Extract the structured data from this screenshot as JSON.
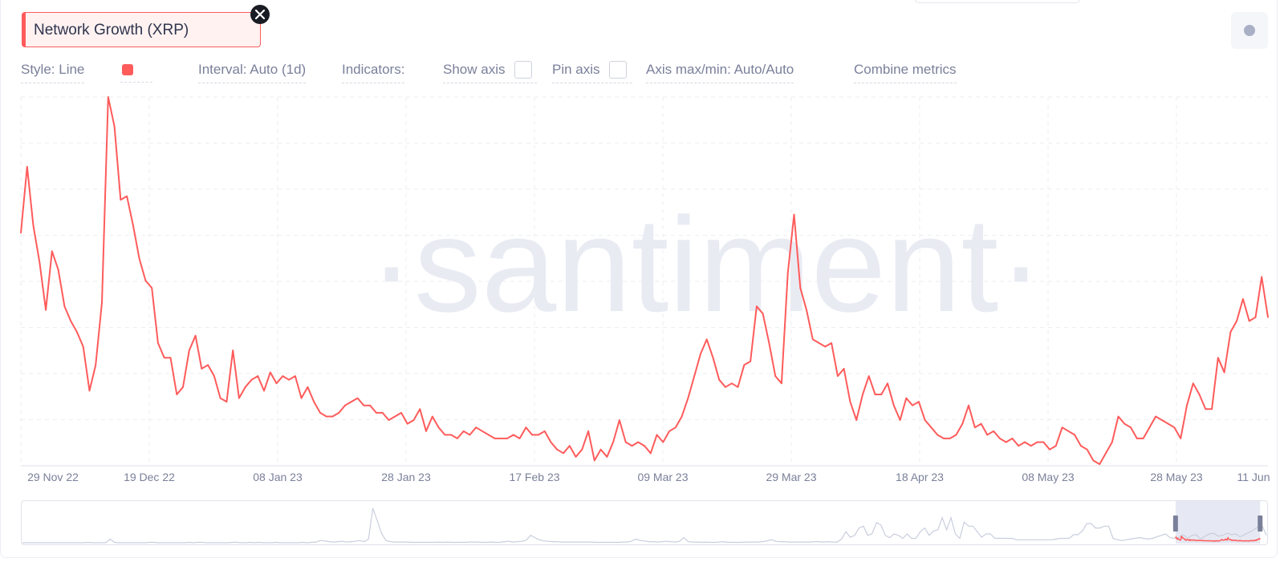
{
  "metric": {
    "label": "Network Growth (XRP)",
    "close_icon": "close-icon",
    "color": "#ff5b5b"
  },
  "settings_button": {
    "icon": "dot-icon"
  },
  "options": {
    "style": "Style: Line",
    "interval": "Interval: Auto (1d)",
    "indicators": "Indicators:",
    "show_axis": "Show axis",
    "pin_axis": "Pin axis",
    "axis_maxmin": "Axis max/min: Auto/Auto",
    "combine": "Combine metrics"
  },
  "watermark": "·santiment·",
  "chart_data": {
    "type": "line",
    "title": "Network Growth (XRP)",
    "xlabel": "",
    "ylabel": "",
    "y_axis_labels_shown": false,
    "grid": true,
    "x_ticks": [
      "29 Nov 22",
      "19 Dec 22",
      "08 Jan 23",
      "28 Jan 23",
      "17 Feb 23",
      "09 Mar 23",
      "29 Mar 23",
      "18 Apr 23",
      "08 May 23",
      "28 May 23",
      "11 Jun"
    ],
    "x_start": "2022-11-29",
    "series": [
      {
        "name": "Network Growth (XRP)",
        "color": "#ff5b5b",
        "note": "relative daily values (no y-axis labels shown), 0 = chart bottom, 100 = chart top",
        "values": [
          63,
          81,
          65,
          55,
          42,
          58,
          53,
          43,
          39,
          36,
          32,
          20,
          27,
          44,
          100,
          92,
          72,
          73,
          65,
          56,
          50,
          48,
          33,
          29,
          29,
          19,
          21,
          31,
          35,
          26,
          27,
          24,
          18,
          17,
          31,
          18,
          21,
          23,
          24,
          20,
          25,
          22,
          24,
          23,
          24,
          18,
          21,
          17,
          14,
          13,
          13,
          14,
          16,
          17,
          18,
          16,
          16,
          14,
          14,
          12,
          13,
          14,
          11,
          12,
          15,
          9,
          13,
          10,
          8,
          8,
          7,
          9,
          8,
          10,
          9,
          8,
          7,
          7,
          7,
          8,
          7,
          10,
          8,
          8,
          9,
          6,
          4,
          3,
          5,
          2,
          4,
          9,
          1,
          4,
          2,
          6,
          12,
          6,
          5,
          6,
          5,
          3,
          8,
          6,
          9,
          10,
          13,
          18,
          24,
          30,
          34,
          29,
          23,
          21,
          22,
          21,
          27,
          28,
          43,
          41,
          33,
          24,
          22,
          52,
          68,
          48,
          42,
          34,
          33,
          32,
          33,
          24,
          26,
          17,
          12,
          19,
          24,
          19,
          19,
          22,
          16,
          12,
          18,
          16,
          17,
          12,
          10,
          8,
          7,
          7,
          8,
          11,
          16,
          10,
          11,
          8,
          9,
          7,
          6,
          7,
          5,
          6,
          5,
          6,
          6,
          4,
          5,
          10,
          9,
          8,
          5,
          4,
          1,
          0,
          3,
          6,
          13,
          11,
          10,
          7,
          7,
          10,
          13,
          12,
          11,
          10,
          7,
          16,
          22,
          19,
          15,
          15,
          29,
          25,
          36,
          39,
          45,
          39,
          40,
          51,
          40
        ]
      }
    ],
    "navigator": {
      "note": "overview of full history, relative values; highlighted window covers the main chart range",
      "values": [
        0,
        0,
        0,
        0,
        0,
        0,
        0,
        0,
        0,
        0,
        0,
        0,
        0,
        0,
        0,
        1,
        0,
        0,
        0,
        0,
        10,
        1,
        0,
        0,
        0,
        0,
        0,
        0,
        0,
        1,
        1,
        0,
        0,
        0,
        0,
        0,
        0,
        0,
        1,
        0,
        1,
        1,
        0,
        0,
        0,
        0,
        0,
        0,
        1,
        1,
        0,
        0,
        1,
        0,
        1,
        0,
        0,
        0,
        1,
        0,
        0,
        0,
        0,
        0,
        1,
        0,
        1,
        2,
        6,
        5,
        3,
        2,
        3,
        4,
        2,
        3,
        4,
        6,
        3,
        10,
        94,
        60,
        25,
        6,
        3,
        2,
        2,
        2,
        2,
        1,
        1,
        1,
        1,
        1,
        1,
        2,
        1,
        2,
        1,
        1,
        1,
        1,
        2,
        2,
        2,
        1,
        1,
        2,
        1,
        1,
        3,
        4,
        2,
        3,
        4,
        7,
        20,
        14,
        8,
        5,
        4,
        3,
        3,
        2,
        2,
        2,
        2,
        2,
        2,
        2,
        2,
        1,
        1,
        1,
        1,
        1,
        1,
        2,
        2,
        4,
        10,
        6,
        5,
        3,
        3,
        2,
        3,
        4,
        3,
        2,
        4,
        14,
        3,
        2,
        2,
        1,
        2,
        1,
        1,
        2,
        3,
        1,
        1,
        1,
        1,
        2,
        2,
        2,
        2,
        3,
        5,
        8,
        4,
        3,
        3,
        2,
        2,
        2,
        2,
        2,
        2,
        3,
        3,
        2,
        3,
        2,
        2,
        10,
        30,
        15,
        20,
        40,
        45,
        20,
        25,
        55,
        48,
        20,
        14,
        24,
        20,
        12,
        24,
        12,
        12,
        30,
        40,
        20,
        32,
        35,
        68,
        35,
        68,
        24,
        12,
        56,
        45,
        45,
        30,
        15,
        24,
        24,
        12,
        12,
        12,
        12,
        12,
        8,
        8,
        8,
        8,
        8,
        8,
        8,
        8,
        8,
        10,
        12,
        12,
        12,
        22,
        22,
        32,
        52,
        52,
        40,
        40,
        45,
        45,
        12,
        8,
        6,
        8,
        10,
        12,
        14,
        12,
        10,
        12,
        16,
        20,
        24,
        14,
        12,
        14,
        22,
        12,
        20,
        22,
        10,
        18,
        24,
        26,
        18,
        20,
        26,
        22,
        24,
        16,
        22,
        28,
        34,
        42,
        48,
        20
      ],
      "highlight": [
        0.927,
        0.995
      ]
    }
  }
}
